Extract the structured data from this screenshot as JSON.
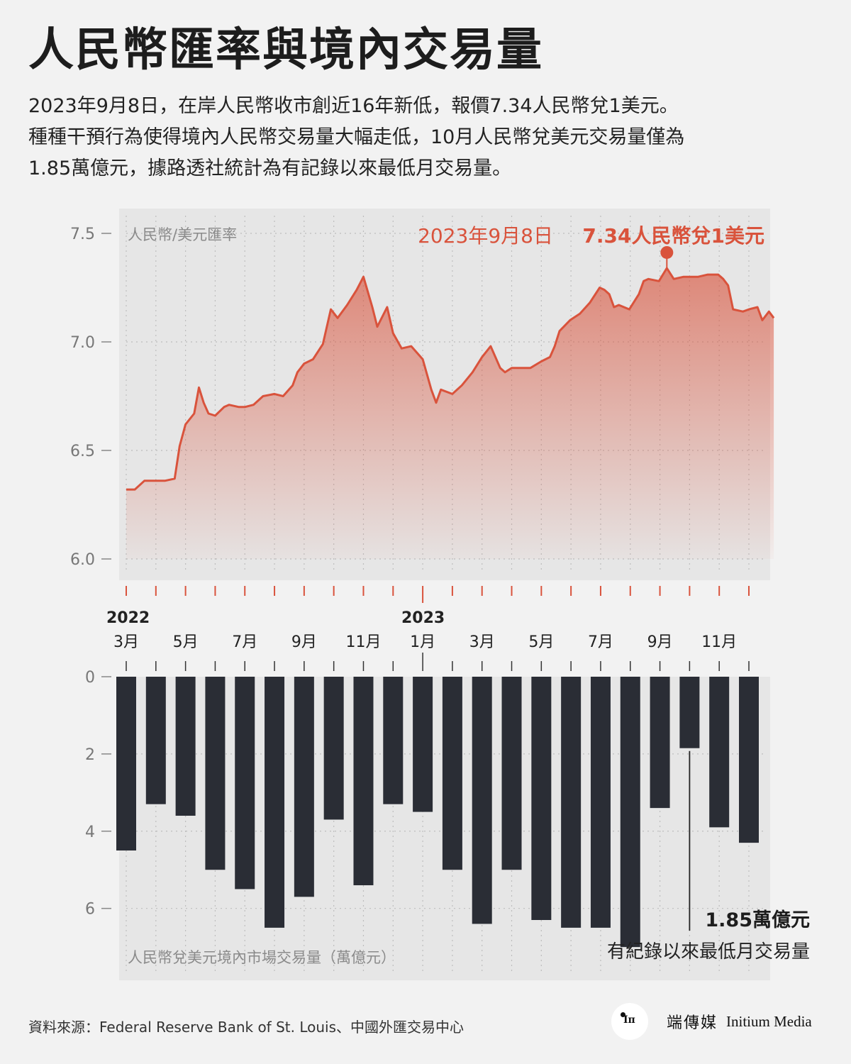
{
  "header": {
    "title": "人民幣匯率與境內交易量",
    "subtitle_lines": [
      "2023年9月8日，在岸人民幣收市創近16年新低，報價7.34人民幣兌1美元。",
      "種種干預行為使得境內人民幣交易量大幅走低，10月人民幣兌美元交易量僅為",
      "1.85萬億元，據路透社統計為有記錄以來最低月交易量。"
    ]
  },
  "chart_data": [
    {
      "type": "area",
      "panel_label": "人民幣/美元匯率",
      "ylim": [
        6.0,
        7.5
      ],
      "yticks": [
        "7.5",
        "7.0",
        "6.5",
        "6.0"
      ],
      "ytick_values": [
        7.5,
        7.0,
        6.5,
        6.0
      ],
      "x_range": [
        "2022-03-01",
        "2023-12-31"
      ],
      "color": "#d9533c",
      "points": [
        [
          "2022-03-01",
          6.32
        ],
        [
          "2022-03-10",
          6.32
        ],
        [
          "2022-03-20",
          6.36
        ],
        [
          "2022-04-01",
          6.36
        ],
        [
          "2022-04-10",
          6.36
        ],
        [
          "2022-04-20",
          6.37
        ],
        [
          "2022-04-25",
          6.52
        ],
        [
          "2022-05-01",
          6.62
        ],
        [
          "2022-05-10",
          6.67
        ],
        [
          "2022-05-15",
          6.79
        ],
        [
          "2022-05-20",
          6.72
        ],
        [
          "2022-05-25",
          6.67
        ],
        [
          "2022-06-01",
          6.66
        ],
        [
          "2022-06-10",
          6.7
        ],
        [
          "2022-06-15",
          6.71
        ],
        [
          "2022-06-25",
          6.7
        ],
        [
          "2022-07-01",
          6.7
        ],
        [
          "2022-07-10",
          6.71
        ],
        [
          "2022-07-20",
          6.75
        ],
        [
          "2022-08-01",
          6.76
        ],
        [
          "2022-08-10",
          6.75
        ],
        [
          "2022-08-20",
          6.8
        ],
        [
          "2022-08-25",
          6.86
        ],
        [
          "2022-09-01",
          6.9
        ],
        [
          "2022-09-10",
          6.92
        ],
        [
          "2022-09-20",
          6.99
        ],
        [
          "2022-09-28",
          7.15
        ],
        [
          "2022-10-05",
          7.11
        ],
        [
          "2022-10-15",
          7.17
        ],
        [
          "2022-10-25",
          7.24
        ],
        [
          "2022-11-01",
          7.3
        ],
        [
          "2022-11-10",
          7.16
        ],
        [
          "2022-11-15",
          7.07
        ],
        [
          "2022-11-25",
          7.16
        ],
        [
          "2022-12-01",
          7.04
        ],
        [
          "2022-12-10",
          6.97
        ],
        [
          "2022-12-20",
          6.98
        ],
        [
          "2023-01-01",
          6.92
        ],
        [
          "2023-01-10",
          6.78
        ],
        [
          "2023-01-15",
          6.72
        ],
        [
          "2023-01-20",
          6.78
        ],
        [
          "2023-02-01",
          6.76
        ],
        [
          "2023-02-10",
          6.8
        ],
        [
          "2023-02-20",
          6.86
        ],
        [
          "2023-03-01",
          6.93
        ],
        [
          "2023-03-10",
          6.98
        ],
        [
          "2023-03-20",
          6.88
        ],
        [
          "2023-03-25",
          6.86
        ],
        [
          "2023-04-01",
          6.88
        ],
        [
          "2023-04-10",
          6.88
        ],
        [
          "2023-04-20",
          6.88
        ],
        [
          "2023-05-01",
          6.91
        ],
        [
          "2023-05-10",
          6.93
        ],
        [
          "2023-05-15",
          6.98
        ],
        [
          "2023-05-20",
          7.05
        ],
        [
          "2023-05-31",
          7.1
        ],
        [
          "2023-06-10",
          7.13
        ],
        [
          "2023-06-20",
          7.18
        ],
        [
          "2023-06-30",
          7.25
        ],
        [
          "2023-07-05",
          7.24
        ],
        [
          "2023-07-10",
          7.22
        ],
        [
          "2023-07-15",
          7.16
        ],
        [
          "2023-07-20",
          7.17
        ],
        [
          "2023-07-31",
          7.15
        ],
        [
          "2023-08-10",
          7.22
        ],
        [
          "2023-08-15",
          7.28
        ],
        [
          "2023-08-20",
          7.29
        ],
        [
          "2023-08-31",
          7.28
        ],
        [
          "2023-09-08",
          7.34
        ],
        [
          "2023-09-15",
          7.29
        ],
        [
          "2023-09-25",
          7.3
        ],
        [
          "2023-10-10",
          7.3
        ],
        [
          "2023-10-20",
          7.31
        ],
        [
          "2023-10-31",
          7.31
        ],
        [
          "2023-11-05",
          7.29
        ],
        [
          "2023-11-10",
          7.26
        ],
        [
          "2023-11-15",
          7.15
        ],
        [
          "2023-11-25",
          7.14
        ],
        [
          "2023-12-01",
          7.15
        ],
        [
          "2023-12-10",
          7.16
        ],
        [
          "2023-12-15",
          7.1
        ],
        [
          "2023-12-22",
          7.14
        ],
        [
          "2023-12-27",
          7.11
        ]
      ],
      "annotation": {
        "date": "2023-09-08",
        "value": 7.34,
        "label_date": "2023年9月8日",
        "label_value": "7.34人民幣兌1美元"
      }
    },
    {
      "type": "bar",
      "panel_label": "人民幣兌美元境內市場交易量（萬億元）",
      "ylim": [
        0,
        7.5
      ],
      "yticks": [
        "0",
        "2",
        "4",
        "6"
      ],
      "ytick_values": [
        0,
        2,
        4,
        6
      ],
      "color": "#2a2d35",
      "categories": [
        "2022-03",
        "2022-04",
        "2022-05",
        "2022-06",
        "2022-07",
        "2022-08",
        "2022-09",
        "2022-10",
        "2022-11",
        "2022-12",
        "2023-01",
        "2023-02",
        "2023-03",
        "2023-04",
        "2023-05",
        "2023-06",
        "2023-07",
        "2023-08",
        "2023-09",
        "2023-10",
        "2023-11",
        "2023-12"
      ],
      "values": [
        4.5,
        3.3,
        3.6,
        5.0,
        5.5,
        6.5,
        5.7,
        3.7,
        5.4,
        3.3,
        3.5,
        5.0,
        6.4,
        5.0,
        6.3,
        6.5,
        6.5,
        7.0,
        3.4,
        1.85,
        3.9,
        4.3
      ],
      "annotation": {
        "category": "2023-10",
        "value_label": "1.85萬億元",
        "note": "有紀錄以來最低月交易量"
      }
    }
  ],
  "x_axis": {
    "months": [
      "3月",
      "5月",
      "7月",
      "9月",
      "11月",
      "1月",
      "3月",
      "5月",
      "7月",
      "9月",
      "11月"
    ],
    "years": [
      "2022",
      "2023"
    ]
  },
  "footer": {
    "source": "資料來源：Federal Reserve Bank of St. Louis、中國外匯交易中心",
    "logo_cn": "端傳媒",
    "logo_en": "Initium Media"
  }
}
